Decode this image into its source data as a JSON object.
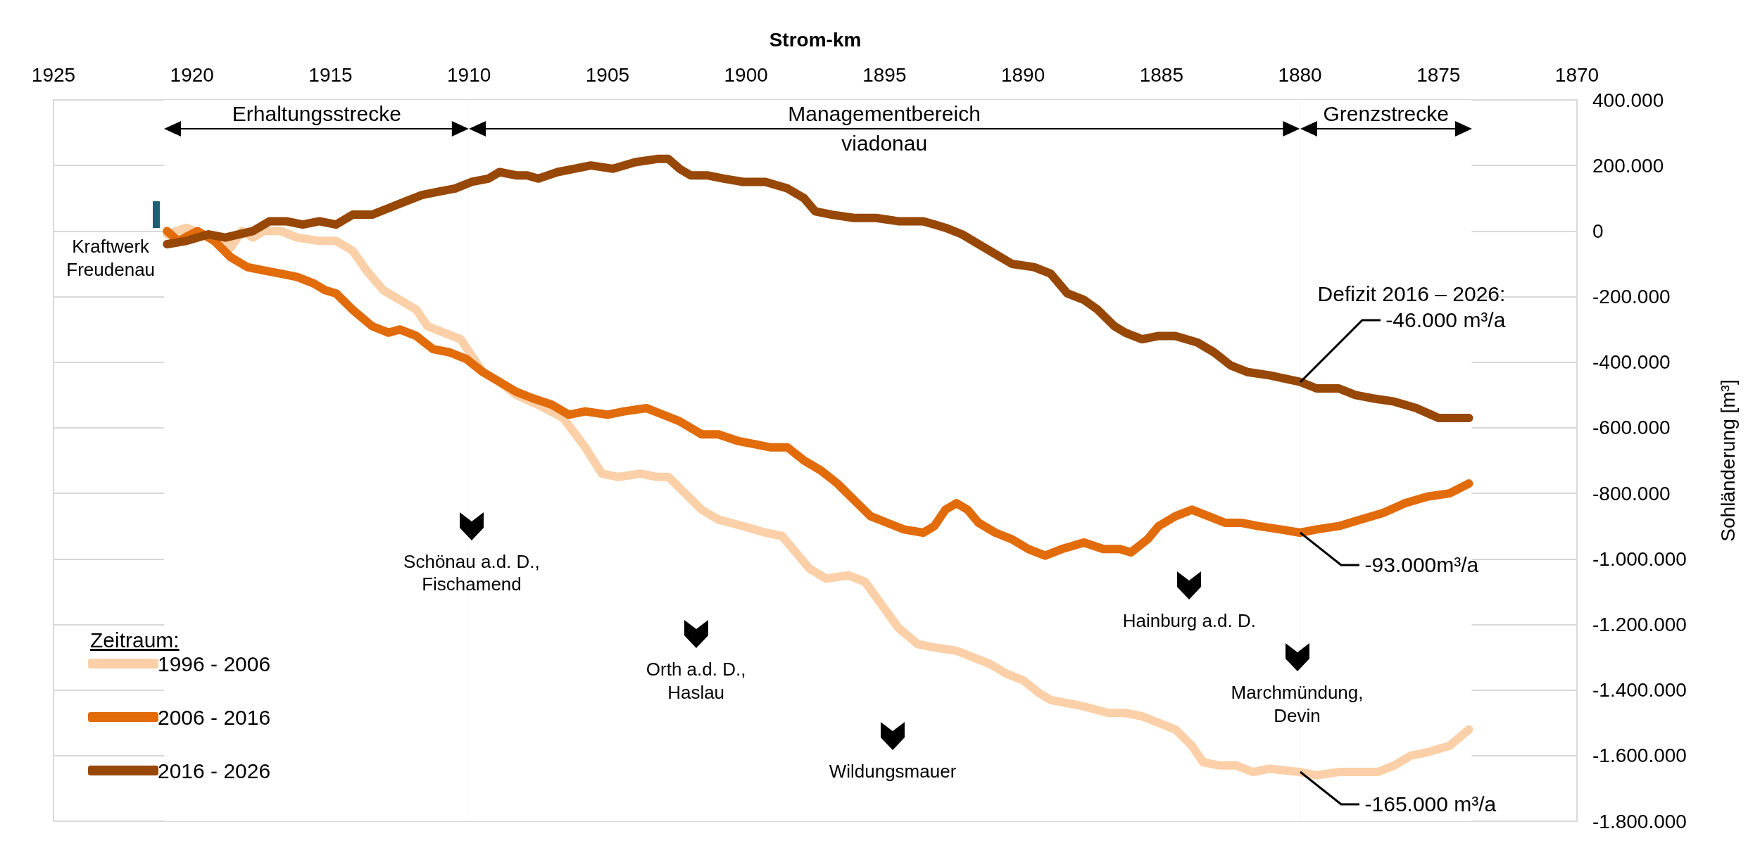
{
  "chart_data": {
    "type": "line",
    "xlabel": "Strom-km",
    "ylabel": "Sohländerung [m³]",
    "legend_title": "Zeitraum:",
    "xlim": [
      1925,
      1870
    ],
    "xticks": [
      1925,
      1920,
      1915,
      1910,
      1905,
      1900,
      1895,
      1890,
      1885,
      1880,
      1875,
      1870
    ],
    "ylim": [
      -1800000,
      400000
    ],
    "yticks": [
      {
        "value": -1800000,
        "label": "-1.800.000"
      },
      {
        "value": -1600000,
        "label": "-1.600.000"
      },
      {
        "value": -1400000,
        "label": "-1.400.000"
      },
      {
        "value": -1200000,
        "label": "-1.200.000"
      },
      {
        "value": -1000000,
        "label": "-1.000.000"
      },
      {
        "value": -800000,
        "label": "-800.000"
      },
      {
        "value": -600000,
        "label": "-600.000"
      },
      {
        "value": -400000,
        "label": "-400.000"
      },
      {
        "value": -200000,
        "label": "-200.000"
      },
      {
        "value": 0,
        "label": "0"
      },
      {
        "value": 200000,
        "label": "200.000"
      },
      {
        "value": 400000,
        "label": "400.000"
      }
    ],
    "grid": true,
    "legend": "bottom left",
    "marker": "none",
    "line_style": "solid",
    "series": [
      {
        "name": "1996 - 2006",
        "color": "#fbd0a8",
        "x": [
          1920.9,
          1920.2,
          1919.6,
          1919.0,
          1918.6,
          1918.2,
          1917.8,
          1917.4,
          1916.8,
          1916.2,
          1915.4,
          1914.8,
          1914.2,
          1913.7,
          1913.1,
          1912.5,
          1911.9,
          1911.5,
          1910.9,
          1910.3,
          1909.9,
          1909.5,
          1908.9,
          1908.3,
          1907.5,
          1906.6,
          1905.8,
          1905.2,
          1904.6,
          1903.8,
          1903.2,
          1902.8,
          1902.2,
          1901.6,
          1901.0,
          1900.1,
          1899.3,
          1898.7,
          1898.3,
          1897.7,
          1897.1,
          1896.3,
          1895.7,
          1895.1,
          1894.5,
          1893.8,
          1893.2,
          1892.4,
          1891.8,
          1891.2,
          1890.6,
          1890.0,
          1889.4,
          1889.0,
          1888.4,
          1887.8,
          1886.9,
          1886.3,
          1885.7,
          1885.1,
          1884.5,
          1883.9,
          1883.5,
          1882.9,
          1882.3,
          1881.7,
          1881.1,
          1880.0,
          1879.4,
          1878.6,
          1877.8,
          1877.2,
          1876.6,
          1876.0,
          1875.4,
          1874.6,
          1873.9
        ],
        "values": [
          -10000,
          10000,
          -10000,
          -20000,
          -50000,
          0,
          -20000,
          0,
          0,
          -20000,
          -30000,
          -30000,
          -60000,
          -120000,
          -180000,
          -210000,
          -240000,
          -290000,
          -310000,
          -330000,
          -380000,
          -430000,
          -460000,
          -500000,
          -530000,
          -570000,
          -660000,
          -740000,
          -750000,
          -740000,
          -750000,
          -750000,
          -800000,
          -850000,
          -880000,
          -900000,
          -920000,
          -930000,
          -970000,
          -1030000,
          -1060000,
          -1050000,
          -1070000,
          -1140000,
          -1210000,
          -1260000,
          -1270000,
          -1280000,
          -1300000,
          -1320000,
          -1350000,
          -1370000,
          -1410000,
          -1430000,
          -1440000,
          -1450000,
          -1470000,
          -1470000,
          -1480000,
          -1500000,
          -1520000,
          -1570000,
          -1620000,
          -1630000,
          -1630000,
          -1650000,
          -1640000,
          -1650000,
          -1660000,
          -1650000,
          -1650000,
          -1650000,
          -1630000,
          -1600000,
          -1590000,
          -1570000,
          -1520000
        ]
      },
      {
        "name": "2006 - 2016",
        "color": "#e26b0a",
        "x": [
          1920.9,
          1920.5,
          1919.8,
          1919.2,
          1918.6,
          1918.0,
          1917.4,
          1916.8,
          1916.2,
          1915.6,
          1915.2,
          1914.8,
          1914.2,
          1913.5,
          1912.9,
          1912.5,
          1911.9,
          1911.3,
          1910.7,
          1910.1,
          1909.5,
          1908.9,
          1908.3,
          1907.7,
          1907.0,
          1906.4,
          1905.8,
          1905.0,
          1904.4,
          1903.6,
          1903.0,
          1902.4,
          1901.6,
          1901.0,
          1900.3,
          1899.7,
          1899.1,
          1898.5,
          1897.9,
          1897.3,
          1896.7,
          1896.1,
          1895.5,
          1894.9,
          1894.3,
          1893.6,
          1893.2,
          1892.8,
          1892.4,
          1892.0,
          1891.6,
          1891.0,
          1890.4,
          1889.8,
          1889.2,
          1888.6,
          1888.2,
          1887.8,
          1887.1,
          1886.5,
          1886.1,
          1885.5,
          1885.1,
          1884.5,
          1883.9,
          1883.3,
          1882.7,
          1882.1,
          1881.5,
          1880.7,
          1880.0,
          1879.4,
          1878.6,
          1877.8,
          1877.0,
          1876.2,
          1875.4,
          1874.6,
          1873.9
        ],
        "values": [
          0,
          -30000,
          0,
          -30000,
          -80000,
          -110000,
          -120000,
          -130000,
          -140000,
          -160000,
          -180000,
          -190000,
          -240000,
          -290000,
          -310000,
          -300000,
          -320000,
          -360000,
          -370000,
          -390000,
          -430000,
          -460000,
          -490000,
          -510000,
          -530000,
          -560000,
          -550000,
          -560000,
          -550000,
          -540000,
          -560000,
          -580000,
          -620000,
          -620000,
          -640000,
          -650000,
          -660000,
          -660000,
          -700000,
          -730000,
          -770000,
          -820000,
          -870000,
          -890000,
          -910000,
          -920000,
          -900000,
          -850000,
          -830000,
          -850000,
          -890000,
          -920000,
          -940000,
          -970000,
          -990000,
          -970000,
          -960000,
          -950000,
          -970000,
          -970000,
          -980000,
          -940000,
          -900000,
          -870000,
          -850000,
          -870000,
          -890000,
          -890000,
          -900000,
          -910000,
          -920000,
          -910000,
          -900000,
          -880000,
          -860000,
          -830000,
          -810000,
          -800000,
          -770000
        ]
      },
      {
        "name": "2016 - 2026",
        "color": "#974706",
        "x": [
          1920.9,
          1920.2,
          1919.4,
          1918.8,
          1917.8,
          1917.2,
          1916.6,
          1916.0,
          1915.4,
          1914.8,
          1914.2,
          1913.5,
          1912.9,
          1912.3,
          1911.7,
          1911.1,
          1910.5,
          1909.9,
          1909.3,
          1908.9,
          1908.3,
          1907.9,
          1907.5,
          1906.8,
          1906.2,
          1905.6,
          1904.8,
          1904.0,
          1903.2,
          1902.8,
          1902.4,
          1902.0,
          1901.4,
          1900.8,
          1900.1,
          1899.3,
          1898.5,
          1897.9,
          1897.5,
          1896.9,
          1896.1,
          1895.3,
          1894.5,
          1893.6,
          1893.2,
          1892.8,
          1892.2,
          1891.6,
          1891.0,
          1890.4,
          1889.6,
          1889.0,
          1888.4,
          1887.8,
          1887.3,
          1886.7,
          1886.3,
          1885.7,
          1885.1,
          1884.5,
          1883.7,
          1883.1,
          1882.5,
          1881.9,
          1881.1,
          1880.0,
          1879.4,
          1878.6,
          1878.0,
          1877.4,
          1876.6,
          1875.8,
          1875.0,
          1873.9
        ],
        "values": [
          -40000,
          -30000,
          -10000,
          -20000,
          0,
          30000,
          30000,
          20000,
          30000,
          20000,
          50000,
          50000,
          70000,
          90000,
          110000,
          120000,
          130000,
          150000,
          160000,
          180000,
          170000,
          170000,
          160000,
          180000,
          190000,
          200000,
          190000,
          210000,
          220000,
          220000,
          190000,
          170000,
          170000,
          160000,
          150000,
          150000,
          130000,
          100000,
          60000,
          50000,
          40000,
          40000,
          30000,
          30000,
          20000,
          10000,
          -10000,
          -40000,
          -70000,
          -100000,
          -110000,
          -130000,
          -190000,
          -210000,
          -240000,
          -290000,
          -310000,
          -330000,
          -320000,
          -320000,
          -340000,
          -370000,
          -410000,
          -430000,
          -440000,
          -460000,
          -480000,
          -480000,
          -500000,
          -510000,
          -520000,
          -540000,
          -570000,
          -570000
        ]
      }
    ],
    "bands": [
      {
        "axis": "x",
        "from": 1921,
        "to": 1910,
        "label": "Erhaltungsstrecke",
        "color": "#ffffff"
      },
      {
        "axis": "x",
        "from": 1910,
        "to": 1880,
        "label": "Managementbereich\nviadonau",
        "color": "#ffffff"
      },
      {
        "axis": "x",
        "from": 1880,
        "to": 1873.8,
        "label": "Grenzstrecke",
        "color": "#ffffff"
      }
    ],
    "annotations": [
      "Kraftwerk\nFreudenau",
      {
        "text": "Schönau a.d. D.,\nFischamend",
        "x": 1909.9,
        "y": -900000
      },
      {
        "text": "Orth a.d. D.,\nHaslau",
        "x": 1901.8,
        "y": -1230000
      },
      {
        "text": "Wildungsmauer",
        "x": 1894.7,
        "y": -1540000
      },
      {
        "text": "Hainburg a.d. D.",
        "x": 1884.0,
        "y": -1080000
      },
      {
        "text": "Marchmündung,\nDevin",
        "x": 1880.1,
        "y": -1300000
      },
      {
        "text": "Defizit 2016 – 2026:\n-46.000 m³/a",
        "x": 1880,
        "y": -460000
      },
      {
        "text": "-93.000m³/a",
        "x": 1880,
        "y": -920000
      },
      {
        "text": "-165.000 m³/a",
        "x": 1880,
        "y": -1650000
      }
    ]
  }
}
